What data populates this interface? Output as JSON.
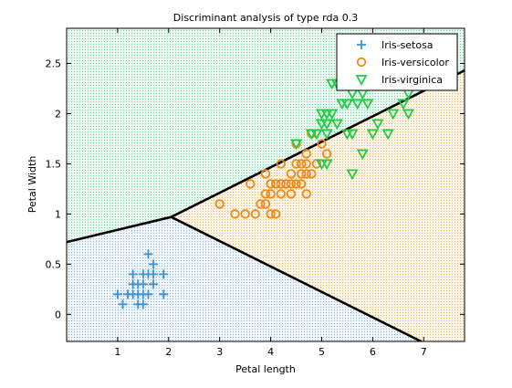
{
  "chart_data": {
    "type": "scatter",
    "title": "Discriminant analysis of type rda 0.3",
    "xlabel": "Petal length",
    "ylabel": "Petal Width",
    "xlim": [
      0.0,
      7.8
    ],
    "ylim": [
      -0.27,
      2.85
    ],
    "xticks": [
      1,
      2,
      3,
      4,
      5,
      6,
      7
    ],
    "yticks": [
      0,
      0.5,
      1,
      1.5,
      2,
      2.5
    ],
    "ytick_labels": [
      "0",
      "0.5",
      "1",
      "1.5",
      "2",
      "2.5"
    ],
    "grid": false,
    "legend_position": "top-right",
    "regions": [
      {
        "label": "Iris-setosa",
        "color": "#9ec2dd",
        "polygon": [
          [
            0.0,
            -0.27
          ],
          [
            0.0,
            0.72
          ],
          [
            2.05,
            0.97
          ],
          [
            6.95,
            -0.27
          ]
        ]
      },
      {
        "label": "Iris-versicolor",
        "color": "#f2c27e",
        "polygon": [
          [
            2.05,
            0.97
          ],
          [
            7.8,
            2.43
          ],
          [
            7.8,
            -0.27
          ],
          [
            6.95,
            -0.27
          ]
        ]
      },
      {
        "label": "Iris-virginica",
        "color": "#86e0b0",
        "polygon": [
          [
            0.0,
            0.72
          ],
          [
            2.05,
            0.97
          ],
          [
            7.8,
            2.43
          ],
          [
            7.8,
            2.85
          ],
          [
            0.0,
            2.85
          ]
        ]
      }
    ],
    "boundaries": [
      [
        [
          0.0,
          0.72
        ],
        [
          2.05,
          0.97
        ]
      ],
      [
        [
          2.05,
          0.97
        ],
        [
          7.8,
          2.43
        ]
      ],
      [
        [
          2.05,
          0.97
        ],
        [
          6.95,
          -0.27
        ]
      ]
    ],
    "series": [
      {
        "name": "Iris-setosa",
        "marker": "plus",
        "color": "#3c93d6",
        "points": [
          [
            1.0,
            0.2
          ],
          [
            1.1,
            0.1
          ],
          [
            1.2,
            0.2
          ],
          [
            1.3,
            0.2
          ],
          [
            1.3,
            0.3
          ],
          [
            1.3,
            0.4
          ],
          [
            1.4,
            0.1
          ],
          [
            1.4,
            0.2
          ],
          [
            1.4,
            0.3
          ],
          [
            1.5,
            0.1
          ],
          [
            1.5,
            0.2
          ],
          [
            1.5,
            0.3
          ],
          [
            1.5,
            0.4
          ],
          [
            1.6,
            0.2
          ],
          [
            1.6,
            0.4
          ],
          [
            1.6,
            0.6
          ],
          [
            1.7,
            0.3
          ],
          [
            1.7,
            0.4
          ],
          [
            1.7,
            0.5
          ],
          [
            1.9,
            0.2
          ],
          [
            1.9,
            0.4
          ]
        ]
      },
      {
        "name": "Iris-versicolor",
        "marker": "circle",
        "color": "#f08a16",
        "points": [
          [
            3.0,
            1.1
          ],
          [
            3.3,
            1.0
          ],
          [
            3.5,
            1.0
          ],
          [
            3.6,
            1.3
          ],
          [
            3.7,
            1.0
          ],
          [
            3.8,
            1.1
          ],
          [
            3.9,
            1.1
          ],
          [
            3.9,
            1.2
          ],
          [
            3.9,
            1.4
          ],
          [
            4.0,
            1.0
          ],
          [
            4.0,
            1.2
          ],
          [
            4.0,
            1.3
          ],
          [
            4.1,
            1.0
          ],
          [
            4.1,
            1.3
          ],
          [
            4.2,
            1.2
          ],
          [
            4.2,
            1.3
          ],
          [
            4.2,
            1.5
          ],
          [
            4.3,
            1.3
          ],
          [
            4.4,
            1.2
          ],
          [
            4.4,
            1.3
          ],
          [
            4.4,
            1.4
          ],
          [
            4.5,
            1.3
          ],
          [
            4.5,
            1.5
          ],
          [
            4.5,
            1.7
          ],
          [
            4.6,
            1.3
          ],
          [
            4.6,
            1.4
          ],
          [
            4.6,
            1.5
          ],
          [
            4.7,
            1.2
          ],
          [
            4.7,
            1.4
          ],
          [
            4.7,
            1.5
          ],
          [
            4.7,
            1.6
          ],
          [
            4.8,
            1.4
          ],
          [
            4.8,
            1.8
          ],
          [
            4.9,
            1.5
          ],
          [
            5.0,
            1.7
          ],
          [
            5.1,
            1.6
          ]
        ]
      },
      {
        "name": "Iris-virginica",
        "marker": "triangle-down",
        "color": "#22cc44",
        "points": [
          [
            4.5,
            1.7
          ],
          [
            4.8,
            1.8
          ],
          [
            4.9,
            1.8
          ],
          [
            5.0,
            1.5
          ],
          [
            5.0,
            1.9
          ],
          [
            5.0,
            2.0
          ],
          [
            5.1,
            1.5
          ],
          [
            5.1,
            1.8
          ],
          [
            5.1,
            1.9
          ],
          [
            5.1,
            2.0
          ],
          [
            5.2,
            2.0
          ],
          [
            5.2,
            2.3
          ],
          [
            5.3,
            1.9
          ],
          [
            5.3,
            2.3
          ],
          [
            5.4,
            2.1
          ],
          [
            5.4,
            2.3
          ],
          [
            5.5,
            1.8
          ],
          [
            5.5,
            2.1
          ],
          [
            5.6,
            1.4
          ],
          [
            5.6,
            1.8
          ],
          [
            5.6,
            2.2
          ],
          [
            5.6,
            2.4
          ],
          [
            5.7,
            2.1
          ],
          [
            5.7,
            2.3
          ],
          [
            5.8,
            1.6
          ],
          [
            5.8,
            2.2
          ],
          [
            5.9,
            2.1
          ],
          [
            6.0,
            1.8
          ],
          [
            6.0,
            2.5
          ],
          [
            6.1,
            1.9
          ],
          [
            6.1,
            2.3
          ],
          [
            6.1,
            2.5
          ],
          [
            6.3,
            1.8
          ],
          [
            6.4,
            2.0
          ],
          [
            6.6,
            2.1
          ],
          [
            6.7,
            2.0
          ],
          [
            6.7,
            2.2
          ],
          [
            6.9,
            2.3
          ]
        ]
      }
    ]
  }
}
